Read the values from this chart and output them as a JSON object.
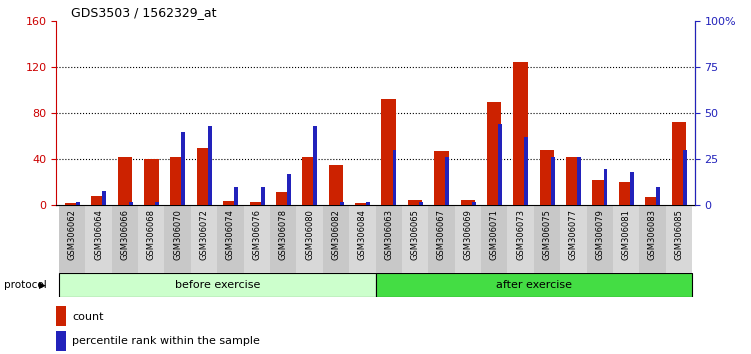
{
  "title": "GDS3503 / 1562329_at",
  "samples": [
    "GSM306062",
    "GSM306064",
    "GSM306066",
    "GSM306068",
    "GSM306070",
    "GSM306072",
    "GSM306074",
    "GSM306076",
    "GSM306078",
    "GSM306080",
    "GSM306082",
    "GSM306084",
    "GSM306063",
    "GSM306065",
    "GSM306067",
    "GSM306069",
    "GSM306071",
    "GSM306073",
    "GSM306075",
    "GSM306077",
    "GSM306079",
    "GSM306081",
    "GSM306083",
    "GSM306085"
  ],
  "count_values": [
    2,
    8,
    42,
    40,
    42,
    50,
    4,
    3,
    12,
    42,
    35,
    2,
    92,
    5,
    47,
    5,
    90,
    125,
    48,
    42,
    22,
    20,
    7,
    72
  ],
  "percentile_values": [
    2,
    8,
    2,
    2,
    40,
    43,
    10,
    10,
    17,
    43,
    2,
    2,
    30,
    2,
    26,
    2,
    44,
    37,
    26,
    26,
    20,
    18,
    10,
    30
  ],
  "before_n": 12,
  "after_n": 12,
  "group_labels": [
    "before exercise",
    "after exercise"
  ],
  "group_colors": [
    "#ccffcc",
    "#44dd44"
  ],
  "left_ylim": [
    0,
    160
  ],
  "left_yticks": [
    0,
    40,
    80,
    120,
    160
  ],
  "right_ylim": [
    0,
    100
  ],
  "right_yticks": [
    0,
    25,
    50,
    75,
    100
  ],
  "left_tick_color": "#cc0000",
  "right_tick_color": "#2222bb",
  "bar_color_count": "#cc2200",
  "bar_color_pct": "#2222bb",
  "grid_lines": [
    40,
    80,
    120
  ],
  "protocol_label": "protocol",
  "legend_count_label": "count",
  "legend_pct_label": "percentile rank within the sample",
  "red_bar_width": 0.55,
  "blue_bar_width": 0.15
}
